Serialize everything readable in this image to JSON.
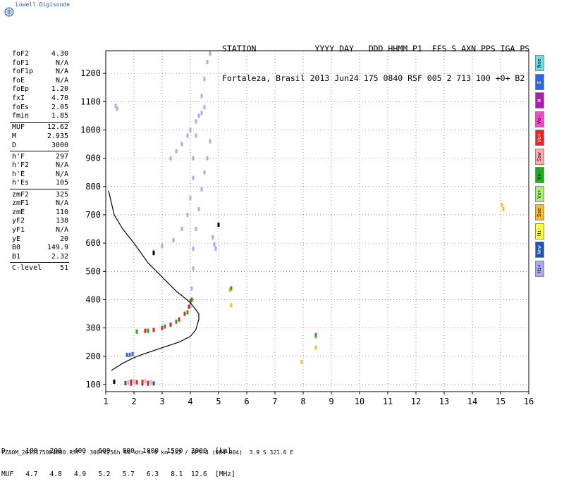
{
  "brand": "Lowell Digisonde",
  "header": {
    "line1": "STATION            YYYY DAY   DDD HHMM P1  FFS S AXN PPS IGA PS",
    "line2": "Fortaleza, Brasil 2013 Jun24 175 0840 RSF 005 2 713 100 +0+ B2"
  },
  "params": [
    {
      "label": "foF2",
      "value": "4.30"
    },
    {
      "label": "foF1",
      "value": "N/A"
    },
    {
      "label": "foF1p",
      "value": "N/A"
    },
    {
      "label": "foE",
      "value": "N/A"
    },
    {
      "label": "foEp",
      "value": "1.20"
    },
    {
      "label": "fxI",
      "value": "4.70"
    },
    {
      "label": "foEs",
      "value": "2.05"
    },
    {
      "label": "fmin",
      "value": "1.85"
    },
    {
      "label": "MUF",
      "value": "12.62"
    },
    {
      "label": "M",
      "value": "2.935"
    },
    {
      "label": "D",
      "value": "3000"
    },
    {
      "label": "h'F",
      "value": "297"
    },
    {
      "label": "h'F2",
      "value": "N/A"
    },
    {
      "label": "h'E",
      "value": "N/A"
    },
    {
      "label": "h'Es",
      "value": "105"
    },
    {
      "label": "zmF2",
      "value": "325"
    },
    {
      "label": "zmF1",
      "value": "N/A"
    },
    {
      "label": "zmE",
      "value": "110"
    },
    {
      "label": "yF2",
      "value": "138"
    },
    {
      "label": "yF1",
      "value": "N/A"
    },
    {
      "label": "yE",
      "value": "20"
    },
    {
      "label": "B0",
      "value": "149.9"
    },
    {
      "label": "B1",
      "value": "2.32"
    },
    {
      "label": "C-level",
      "value": "51"
    }
  ],
  "legend": [
    {
      "label": "Nne",
      "color": "#66e0e8"
    },
    {
      "label": "E",
      "color": "#3366dd"
    },
    {
      "label": "W",
      "color": "#aa22aa"
    },
    {
      "label": "Vo-",
      "color": "#ff44cc"
    },
    {
      "label": "Vo+",
      "color": "#ee2222"
    },
    {
      "label": "Ssw",
      "color": "#ffaaaa"
    },
    {
      "label": "Vx-",
      "color": "#22aa22"
    },
    {
      "label": "Vx+",
      "color": "#aaee77"
    },
    {
      "label": "Sse",
      "color": "#ffbb22"
    },
    {
      "label": "Hi-",
      "color": "#ffff44"
    },
    {
      "label": "Nnw",
      "color": "#2255aa"
    },
    {
      "label": "Hi+",
      "color": "#aaaaee"
    }
  ],
  "muf_table": {
    "d_row": "D     100   200   400   600   800  1000  1500  3000  [km]",
    "muf_row": "MUF   4.7   4.8   4.9   5.2   5.7   6.3   8.1  12.6  [MHz]"
  },
  "footer": "FZA0M_2013175084000.RSF / 300fx256h 50 kHz 5.0 km 2x2 / DPS-4 (904-904)  3.9 S 321.6 E",
  "chart_data": {
    "type": "scatter",
    "title": "",
    "xlabel": "",
    "ylabel": "",
    "xlim": [
      1,
      16
    ],
    "ylim": [
      75,
      1280
    ],
    "xticks": [
      1,
      2,
      3,
      4,
      5,
      6,
      7,
      8,
      9,
      10,
      11,
      12,
      13,
      14,
      15,
      16
    ],
    "yticks": [
      100,
      200,
      300,
      400,
      500,
      600,
      700,
      800,
      900,
      1000,
      1100,
      1200
    ],
    "grid": true,
    "legend_position": "right",
    "series": [
      {
        "type": "line",
        "color": "#000000",
        "points": [
          [
            1.1,
            785
          ],
          [
            1.3,
            700
          ],
          [
            1.6,
            650
          ],
          [
            2.0,
            600
          ],
          [
            2.5,
            530
          ],
          [
            3.0,
            480
          ],
          [
            3.5,
            430
          ],
          [
            4.0,
            390
          ],
          [
            4.3,
            350
          ],
          [
            4.3,
            330
          ],
          [
            4.2,
            295
          ],
          [
            4.0,
            270
          ],
          [
            3.6,
            250
          ],
          [
            3.0,
            230
          ],
          [
            2.4,
            210
          ],
          [
            2.0,
            195
          ],
          [
            1.6,
            175
          ],
          [
            1.2,
            150
          ]
        ]
      },
      {
        "type": "trace",
        "color": "#aaaaee",
        "points": [
          [
            2.7,
            570
          ],
          [
            3.0,
            590
          ],
          [
            3.4,
            610
          ],
          [
            3.7,
            650
          ],
          [
            3.9,
            700
          ],
          [
            4.0,
            760
          ],
          [
            4.1,
            830
          ],
          [
            4.1,
            900
          ],
          [
            4.2,
            980
          ],
          [
            4.3,
            1050
          ],
          [
            4.4,
            1120
          ],
          [
            4.5,
            1180
          ],
          [
            4.6,
            1240
          ],
          [
            4.7,
            1270
          ]
        ]
      },
      {
        "type": "trace",
        "color": "#aaaaee",
        "points": [
          [
            4.0,
            380
          ],
          [
            4.05,
            440
          ],
          [
            4.1,
            510
          ],
          [
            4.1,
            580
          ],
          [
            4.2,
            650
          ],
          [
            4.3,
            720
          ],
          [
            4.4,
            790
          ],
          [
            4.5,
            850
          ],
          [
            4.6,
            900
          ],
          [
            4.7,
            960
          ]
        ]
      },
      {
        "type": "trace",
        "color": "#aaaaee",
        "points": [
          [
            3.3,
            900
          ],
          [
            3.5,
            925
          ],
          [
            3.7,
            950
          ],
          [
            3.9,
            980
          ],
          [
            4.0,
            1000
          ],
          [
            4.2,
            1030
          ],
          [
            4.4,
            1060
          ],
          [
            4.5,
            1080
          ]
        ]
      },
      {
        "type": "trace",
        "color": "#ee2222",
        "points": [
          [
            2.4,
            290
          ],
          [
            2.7,
            293
          ],
          [
            3.0,
            300
          ],
          [
            3.3,
            312
          ],
          [
            3.6,
            330
          ],
          [
            3.8,
            350
          ],
          [
            3.95,
            375
          ],
          [
            4.05,
            400
          ]
        ]
      },
      {
        "type": "trace",
        "color": "#22aa22",
        "points": [
          [
            2.1,
            287
          ],
          [
            2.5,
            290
          ],
          [
            3.1,
            305
          ],
          [
            3.5,
            322
          ],
          [
            3.9,
            355
          ],
          [
            4.0,
            395
          ]
        ]
      },
      {
        "type": "trace",
        "color": "#2255aa",
        "points": [
          [
            1.7,
            105
          ],
          [
            1.9,
            110
          ],
          [
            2.1,
            108
          ],
          [
            2.3,
            104
          ],
          [
            2.5,
            106
          ],
          [
            2.7,
            104
          ]
        ]
      },
      {
        "type": "trace",
        "color": "#ee2222",
        "points": [
          [
            1.9,
            103
          ],
          [
            2.1,
            108
          ],
          [
            2.3,
            110
          ],
          [
            2.5,
            103
          ]
        ]
      },
      {
        "type": "trace",
        "color": "#ffaaaa",
        "points": [
          [
            1.8,
            108
          ],
          [
            2.0,
            112
          ],
          [
            2.4,
            112
          ],
          [
            2.6,
            108
          ]
        ]
      },
      {
        "type": "trace",
        "color": "#3366dd",
        "points": [
          [
            1.75,
            205
          ],
          [
            1.85,
            205
          ],
          [
            1.95,
            208
          ]
        ]
      },
      {
        "type": "trace",
        "color": "#aaaaee",
        "points": [
          [
            1.35,
            1085
          ],
          [
            1.4,
            1075
          ]
        ]
      },
      {
        "type": "trace",
        "color": "#aaaaee",
        "points": [
          [
            4.8,
            620
          ],
          [
            4.85,
            595
          ],
          [
            4.9,
            580
          ]
        ]
      },
      {
        "type": "trace",
        "color": "#ffbb22",
        "points": [
          [
            5.4,
            435
          ],
          [
            5.45,
            380
          ],
          [
            8.45,
            270
          ],
          [
            8.45,
            230
          ],
          [
            7.95,
            180
          ],
          [
            15.05,
            735
          ],
          [
            15.1,
            720
          ]
        ]
      },
      {
        "type": "trace",
        "color": "#22aa22",
        "points": [
          [
            8.45,
            275
          ],
          [
            5.45,
            440
          ]
        ]
      },
      {
        "type": "trace",
        "color": "#000000",
        "points": [
          [
            5.0,
            665
          ],
          [
            2.7,
            565
          ],
          [
            1.3,
            110
          ]
        ]
      }
    ]
  }
}
